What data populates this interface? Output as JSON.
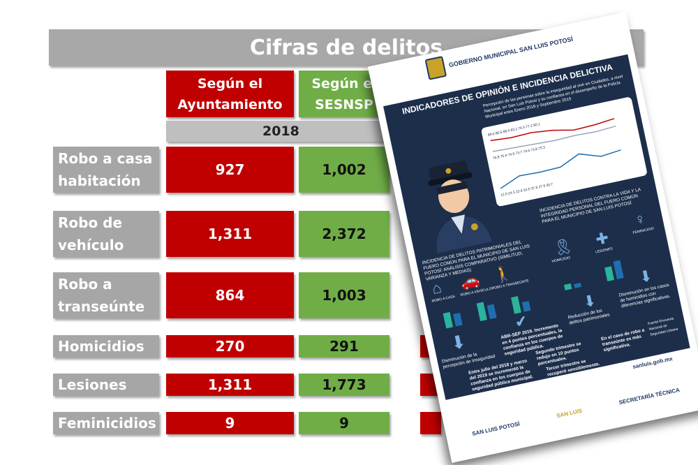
{
  "title": "Cifras de delitos",
  "columns": {
    "ayuntamiento": "Según el Ayuntamiento",
    "sesnsp": "Según el SESNSP"
  },
  "year": "2018",
  "rows": [
    {
      "label": "Robo a casa habitación",
      "ayuntamiento": "927",
      "sesnsp": "1,002"
    },
    {
      "label": "Robo de vehículo",
      "ayuntamiento": "1,311",
      "sesnsp": "2,372"
    },
    {
      "label": "Robo a transeúnte",
      "ayuntamiento": "864",
      "sesnsp": "1,003"
    },
    {
      "label": "Homicidios",
      "ayuntamiento": "270",
      "sesnsp": "291"
    },
    {
      "label": "Lesiones",
      "ayuntamiento": "1,311",
      "sesnsp": "1,773"
    },
    {
      "label": "Feminicidios",
      "ayuntamiento": "9",
      "sesnsp": "9"
    }
  ],
  "poster": {
    "header": "GOBIERNO MUNICIPAL  SAN LUIS POTOSÍ",
    "title": "INDICADORES DE OPINIÓN E INCIDENCIA DELICTIVA",
    "chart_caption": "Percepción de las personas sobre la inseguridad al vivir en Ciudades, a nivel Nacional, en San Luis Potosí y su confianza en el desempeño de la Policía Municipal entre Enero 2018 y Septiembre 2019",
    "chart_values_top": [
      "89.6",
      "86.6",
      "88.5",
      "83.1",
      "76.5",
      "77.2",
      "80.1"
    ],
    "chart_values_mid": [
      "76.8",
      "75.9",
      "74.9",
      "73.7",
      "74.6",
      "73.8",
      "75.3"
    ],
    "chart_values_low": [
      "12.9",
      "24.3",
      "23.9",
      "24.5",
      "37.6",
      "27.9",
      "30.7"
    ],
    "patrimonial_caption": "INCIDENCIA DE DELITOS PATRIMONIALES DEL FUERO COMÚN PARA EL MUNICIPIO DE SAN LUIS POTOSÍ: ANÁLISIS COMPARATIVO (SIMILITUD, VARIANZA Y MEDIAS)",
    "life_caption": "INCIDENCIA DE DELITOS CONTRA LA VIDA Y LA INTEGRIDAD PERSONAL DEL FUERO COMÚN PARA EL MUNICIPIO DE SAN LUIS POTOSÍ",
    "labels": [
      "ROBO A CASA",
      "ROBO A VEHÍCULO",
      "ROBO A TRANSEÚNTE",
      "HOMICIDIO",
      "LESIONES",
      "FEMINICIDIO"
    ],
    "note1": "Disminución de la percepción de inseguridad",
    "note2": "ABR-SEP 2019. Incremento en 4 puntos porcentuales, la confianza en los cuerpos de seguridad pública.",
    "note3": "Reducción de los delitos patrimoniales",
    "note4": "Disminución en los casos de homicidios con diferencias significativas.",
    "note5": "Entre julio del 2018 y marzo del 2019 se incrementó la confianza en los cuerpos de seguridad pública municipal.",
    "note6": "Segundo trimestre se redujo en 10 puntos porcentuales.",
    "note7": "Tercer trimestre se recuperó sensiblemente.",
    "note8": "En el caso de robo a transeúnte es más significativa.",
    "source": "Fuente Encuesta Nacional de Seguridad Urbana",
    "website": "sanluis.gob.mx",
    "footer_logos": [
      "SAN LUIS POTOSÍ",
      "SAN LUIS",
      "SECRETARÍA TÉCNICA"
    ]
  }
}
